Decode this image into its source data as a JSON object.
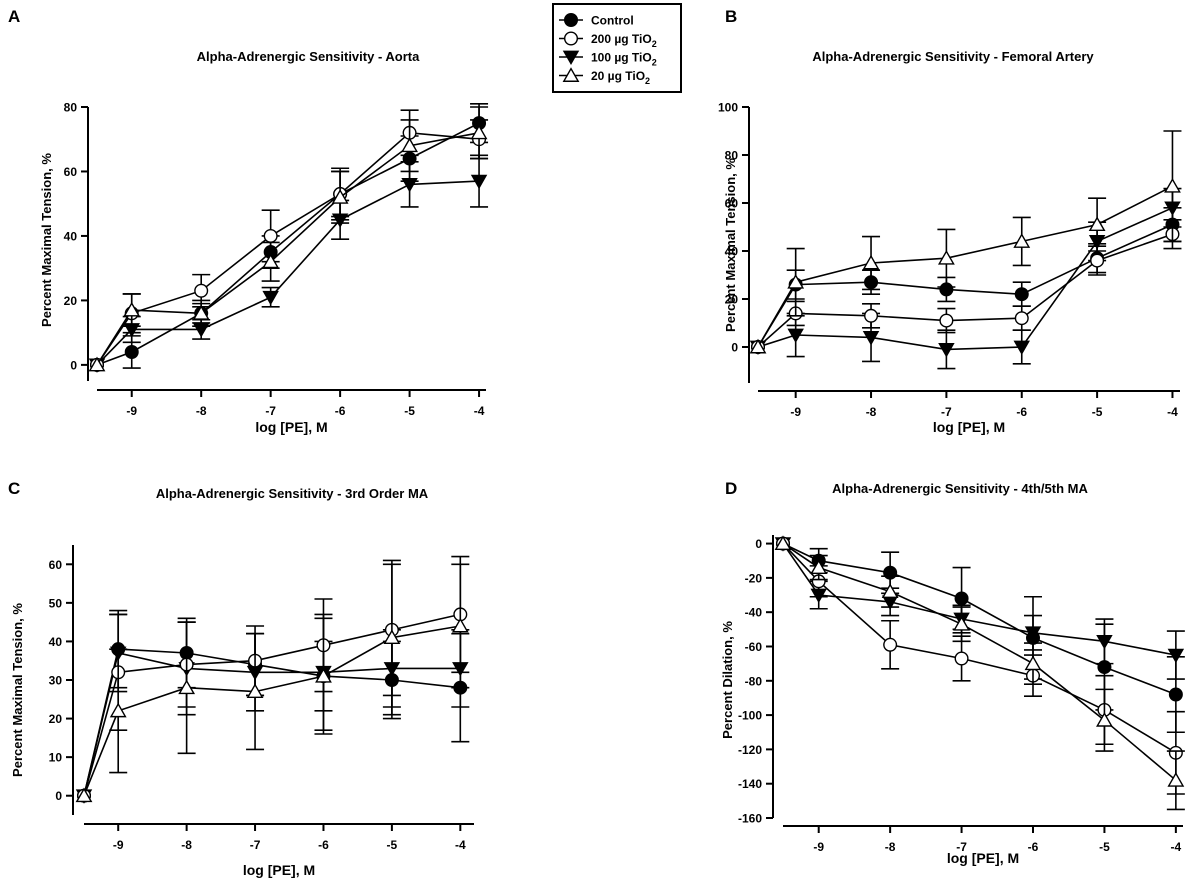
{
  "legend": {
    "entries": [
      {
        "series": "Control",
        "label": "Control",
        "marker": "circle-filled"
      },
      {
        "series": "200ug",
        "label": "200 µg TiO",
        "sub": "2",
        "marker": "circle-open"
      },
      {
        "series": "100ug",
        "label": "100 µg TiO",
        "sub": "2",
        "marker": "triangle-down-filled"
      },
      {
        "series": "20ug",
        "label": "20 µg TiO",
        "sub": "2",
        "marker": "triangle-up-open"
      }
    ]
  },
  "chart_data": [
    {
      "panel": "A",
      "type": "line",
      "title": "Alpha-Adrenergic Sensitivity - Aorta",
      "xlabel": "log [PE], M",
      "ylabel": "Percent Maximal Tension, %",
      "xlim": [
        -9.5,
        -3.9
      ],
      "ylim": [
        -5,
        80
      ],
      "xticks": [
        -9,
        -8,
        -7,
        -6,
        -5,
        -4
      ],
      "xtick_labels": [
        "-9",
        "-8",
        "-7",
        "-6",
        "-5",
        "-4"
      ],
      "yticks": [
        0,
        20,
        40,
        60,
        80
      ],
      "ytick_labels": [
        "0",
        "20",
        "40",
        "60",
        "80"
      ],
      "x": [
        -9.5,
        -9,
        -8,
        -7,
        -6,
        -5,
        -4
      ],
      "series": [
        {
          "name": "Control",
          "values": [
            0,
            4,
            16,
            35,
            53,
            64,
            75
          ],
          "errors": [
            0,
            5,
            3,
            5,
            7,
            7,
            6
          ]
        },
        {
          "name": "200ug",
          "values": [
            0,
            16,
            23,
            40,
            53,
            72,
            70
          ],
          "errors": [
            0,
            6,
            5,
            8,
            8,
            7,
            6
          ]
        },
        {
          "name": "100ug",
          "values": [
            0,
            11,
            11,
            21,
            45,
            56,
            57
          ],
          "errors": [
            0,
            4,
            3,
            3,
            6,
            7,
            8
          ]
        },
        {
          "name": "20ug",
          "values": [
            0,
            17,
            16,
            32,
            52,
            68,
            72
          ],
          "errors": [
            0,
            5,
            4,
            6,
            8,
            8,
            8
          ]
        }
      ]
    },
    {
      "panel": "B",
      "type": "line",
      "title": "Alpha-Adrenergic Sensitivity - Femoral Artery",
      "xlabel": "log [PE], M",
      "ylabel": "Percent Maximal Tension, %",
      "xlim": [
        -9.5,
        -3.9
      ],
      "ylim": [
        -15,
        100
      ],
      "xticks": [
        -9,
        -8,
        -7,
        -6,
        -5,
        -4
      ],
      "xtick_labels": [
        "-9",
        "-8",
        "-7",
        "-6",
        "-5",
        "-4"
      ],
      "yticks": [
        0,
        20,
        40,
        60,
        80,
        100
      ],
      "ytick_labels": [
        "0",
        "20",
        "40",
        "60",
        "80",
        "100"
      ],
      "x": [
        -9.5,
        -9,
        -8,
        -7,
        -6,
        -5,
        -4
      ],
      "series": [
        {
          "name": "Control",
          "values": [
            0,
            26,
            27,
            24,
            22,
            37,
            51
          ],
          "errors": [
            0,
            6,
            5,
            5,
            5,
            6,
            7
          ]
        },
        {
          "name": "200ug",
          "values": [
            0,
            14,
            13,
            11,
            12,
            36,
            47
          ],
          "errors": [
            0,
            5,
            5,
            5,
            5,
            6,
            6
          ]
        },
        {
          "name": "100ug",
          "values": [
            0,
            5,
            4,
            -1,
            0,
            44,
            58
          ],
          "errors": [
            0,
            9,
            10,
            8,
            7,
            8,
            8
          ]
        },
        {
          "name": "20ug",
          "values": [
            0,
            27,
            35,
            37,
            44,
            51,
            67
          ],
          "errors": [
            0,
            14,
            11,
            12,
            10,
            11,
            23
          ]
        }
      ]
    },
    {
      "panel": "C",
      "type": "line",
      "title": "Alpha-Adrenergic Sensitivity - 3rd Order MA",
      "xlabel": "log [PE], M",
      "ylabel": "Percent Maximal Tension, %",
      "xlim": [
        -9.5,
        -3.8
      ],
      "ylim": [
        -5,
        65
      ],
      "xticks": [
        -9,
        -8,
        -7,
        -6,
        -5,
        -4
      ],
      "xtick_labels": [
        "-9",
        "-8",
        "-7",
        "-6",
        "-5",
        "-4"
      ],
      "yticks": [
        0,
        10,
        20,
        30,
        40,
        50,
        60
      ],
      "ytick_labels": [
        "0",
        "10",
        "20",
        "30",
        "40",
        "50",
        "60"
      ],
      "x": [
        -9.5,
        -9,
        -8,
        -7,
        -6,
        -5,
        -4
      ],
      "series": [
        {
          "name": "Control",
          "values": [
            0,
            38,
            37,
            34,
            31,
            30,
            28
          ],
          "errors": [
            0,
            10,
            9,
            8,
            9,
            10,
            14
          ]
        },
        {
          "name": "200ug",
          "values": [
            0,
            32,
            34,
            35,
            39,
            43,
            47
          ],
          "errors": [
            0,
            15,
            11,
            9,
            12,
            17,
            15
          ]
        },
        {
          "name": "100ug",
          "values": [
            0,
            37,
            33,
            32,
            32,
            33,
            33
          ],
          "errors": [
            0,
            10,
            12,
            10,
            15,
            10,
            10
          ]
        },
        {
          "name": "20ug",
          "values": [
            0,
            22,
            28,
            27,
            31,
            41,
            44
          ],
          "errors": [
            0,
            16,
            17,
            15,
            15,
            20,
            16
          ]
        }
      ]
    },
    {
      "panel": "D",
      "type": "line",
      "title": "Alpha-Adrenergic Sensitivity - 4th/5th MA",
      "xlabel": "log [PE], M",
      "ylabel": "Percent Dilation, %",
      "xlim": [
        -9.5,
        -3.9
      ],
      "ylim": [
        -160,
        5
      ],
      "xticks": [
        -9,
        -8,
        -7,
        -6,
        -5,
        -4
      ],
      "xtick_labels": [
        "-9",
        "-8",
        "-7",
        "-6",
        "-5",
        "-4"
      ],
      "yticks": [
        0,
        -20,
        -40,
        -60,
        -80,
        -100,
        -120,
        -140,
        -160
      ],
      "ytick_labels": [
        "0",
        "-20",
        "-40",
        "-60",
        "-80",
        "-100",
        "-120",
        "-140",
        "-160"
      ],
      "x": [
        -9.5,
        -9,
        -8,
        -7,
        -6,
        -5,
        -4
      ],
      "series": [
        {
          "name": "Control",
          "values": [
            0,
            -10,
            -17,
            -32,
            -55,
            -72,
            -88
          ],
          "errors": [
            0,
            7,
            12,
            18,
            24,
            25,
            22
          ]
        },
        {
          "name": "200ug",
          "values": [
            0,
            -22,
            -59,
            -67,
            -77,
            -97,
            -122
          ],
          "errors": [
            0,
            9,
            14,
            13,
            12,
            20,
            24
          ]
        },
        {
          "name": "100ug",
          "values": [
            0,
            -30,
            -34,
            -44,
            -52,
            -57,
            -65
          ],
          "errors": [
            0,
            8,
            8,
            8,
            10,
            13,
            14
          ]
        },
        {
          "name": "20ug",
          "values": [
            0,
            -14,
            -28,
            -47,
            -70,
            -103,
            -138
          ],
          "errors": [
            0,
            7,
            9,
            10,
            12,
            18,
            17
          ]
        }
      ]
    }
  ]
}
